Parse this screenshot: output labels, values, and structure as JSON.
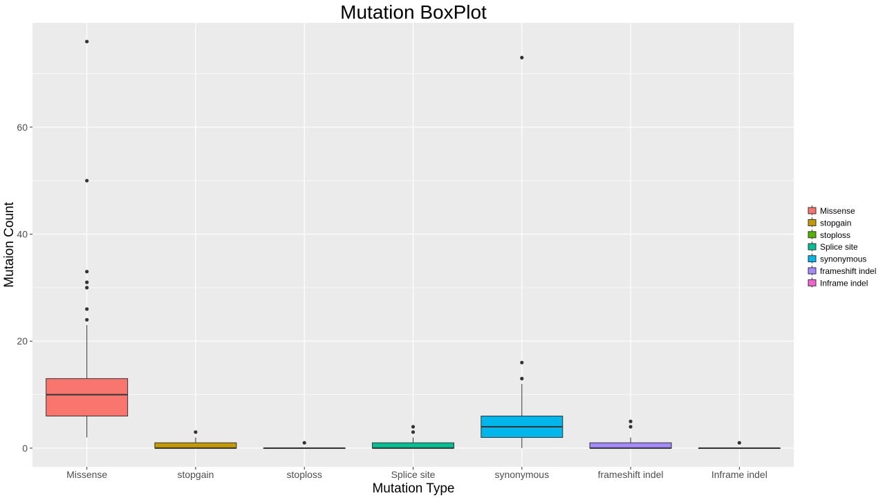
{
  "chart_data": {
    "type": "box",
    "title": "Mutation BoxPlot",
    "xlabel": "Mutation Type",
    "ylabel": "Mutaion Count",
    "ylim": [
      -3.5,
      79.5
    ],
    "yticks": [
      0,
      20,
      40,
      60
    ],
    "grid": true,
    "legend_position": "right",
    "background_color": "#ebebeb",
    "grid_color": "#ffffff",
    "categories": [
      "Missense",
      "stopgain",
      "stoploss",
      "Splice site",
      "synonymous",
      "frameshift indel",
      "Inframe indel"
    ],
    "series": [
      {
        "name": "Missense",
        "color": "#f8766d",
        "min": 2,
        "q1": 6,
        "median": 10,
        "q3": 13,
        "max": 23,
        "outliers": [
          24,
          26,
          30,
          31,
          33,
          50,
          76
        ]
      },
      {
        "name": "stopgain",
        "color": "#c49a00",
        "min": 0,
        "q1": 0,
        "median": 0,
        "q3": 1,
        "max": 2,
        "outliers": [
          3
        ]
      },
      {
        "name": "stoploss",
        "color": "#53b400",
        "min": 0,
        "q1": 0,
        "median": 0,
        "q3": 0,
        "max": 0,
        "outliers": [
          1
        ]
      },
      {
        "name": "Splice site",
        "color": "#00c094",
        "min": 0,
        "q1": 0,
        "median": 0,
        "q3": 1,
        "max": 2,
        "outliers": [
          3,
          4
        ]
      },
      {
        "name": "synonymous",
        "color": "#00b6eb",
        "min": 0,
        "q1": 2,
        "median": 4,
        "q3": 6,
        "max": 12,
        "outliers": [
          13,
          16,
          73
        ]
      },
      {
        "name": "frameshift indel",
        "color": "#a58aff",
        "min": 0,
        "q1": 0,
        "median": 0,
        "q3": 1,
        "max": 2,
        "outliers": [
          4,
          5
        ]
      },
      {
        "name": "Inframe indel",
        "color": "#fb61d7",
        "min": 0,
        "q1": 0,
        "median": 0,
        "q3": 0,
        "max": 0,
        "outliers": [
          1
        ]
      }
    ]
  }
}
